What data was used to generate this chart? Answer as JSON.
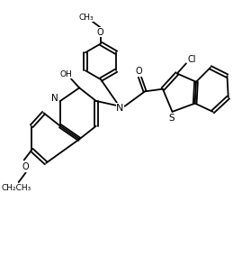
{
  "bg_color": "#ffffff",
  "lw": 1.3,
  "figsize": [
    2.79,
    3.06
  ],
  "dpi": 100,
  "xlim": [
    0,
    10
  ],
  "ylim": [
    0,
    11
  ]
}
